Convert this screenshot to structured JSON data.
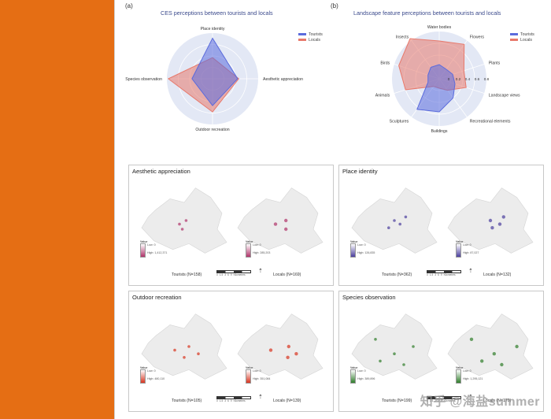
{
  "labels": {
    "a": "(a)",
    "b": "(b)"
  },
  "watermark": "知乎 @海盐summer",
  "chart_data": [
    {
      "type": "radar",
      "title": "CES perceptions between tourists and locals",
      "axes": [
        "Place identity",
        "Aesthetic appreciation",
        "Outdoor recreation",
        "Species observation"
      ],
      "range": [
        -0.8,
        0.8
      ],
      "series": [
        {
          "name": "Tourists",
          "values": [
            0.62,
            0.08,
            0.14,
            -0.08
          ],
          "color": "#5b6bdc"
        },
        {
          "name": "Locals",
          "values": [
            -0.06,
            0.12,
            0.36,
            0.75
          ],
          "color": "#e8796b"
        }
      ],
      "legend": "top-right"
    },
    {
      "type": "radar",
      "title": "Landscape feature perceptions between tourists and locals",
      "axes": [
        "Water bodies",
        "Flowers",
        "Plants",
        "Landscape views",
        "Recreational elements",
        "Buildings",
        "Sculptures",
        "Animals",
        "Birds",
        "Insects"
      ],
      "ticks": [
        "0",
        "0.2",
        "0.4",
        "0.6",
        "0.8"
      ],
      "range": [
        -0.2,
        0.8
      ],
      "series": [
        {
          "name": "Tourists",
          "values": [
            0.1,
            0.05,
            0.1,
            0.15,
            0.3,
            0.5,
            0.6,
            0.05,
            0.05,
            0.1
          ],
          "color": "#5b6bdc"
        },
        {
          "name": "Locals",
          "values": [
            0.6,
            0.7,
            0.35,
            0.4,
            0.1,
            0.0,
            0.0,
            0.55,
            0.7,
            0.85
          ],
          "color": "#e8796b"
        }
      ],
      "legend": "top-right"
    }
  ],
  "panels": [
    {
      "title": "Aesthetic appreciation",
      "left_caption": "Tourists (N=158)",
      "right_caption": "Locals (N=169)",
      "legend_title": "Value",
      "legend_low": "Low: 0",
      "legend_high_left": "High: 1,412,371",
      "legend_high_right": "High: 285,203",
      "color": "#b0336a",
      "scheme": "purple"
    },
    {
      "title": "Place identity",
      "left_caption": "Tourists (N=362)",
      "right_caption": "Locals (N=132)",
      "legend_title": "Value",
      "legend_low": "Low: 0",
      "legend_high_left": "High: 126,835",
      "legend_high_right": "High: 87,027",
      "color": "#4b3f9e",
      "scheme": "indigo"
    },
    {
      "title": "Outdoor recreation",
      "left_caption": "Tourists (N=105)",
      "right_caption": "Locals (N=139)",
      "legend_title": "Value",
      "legend_low": "Low: 0",
      "legend_high_left": "High: 480,110",
      "legend_high_right": "High: 351,084",
      "color": "#d8341f",
      "scheme": "red"
    },
    {
      "title": "Species observation",
      "left_caption": "Tourists (N=199)",
      "right_caption": "Locals (N=179)",
      "legend_title": "Value",
      "legend_low": "Low: 0",
      "legend_high_left": "High: 389,896",
      "legend_high_right": "High: 1,295,121",
      "color": "#2f7d2a",
      "scheme": "green"
    }
  ],
  "scale_labels": [
    "0",
    "1.5",
    "3",
    "6",
    "9",
    "Kilometers"
  ]
}
